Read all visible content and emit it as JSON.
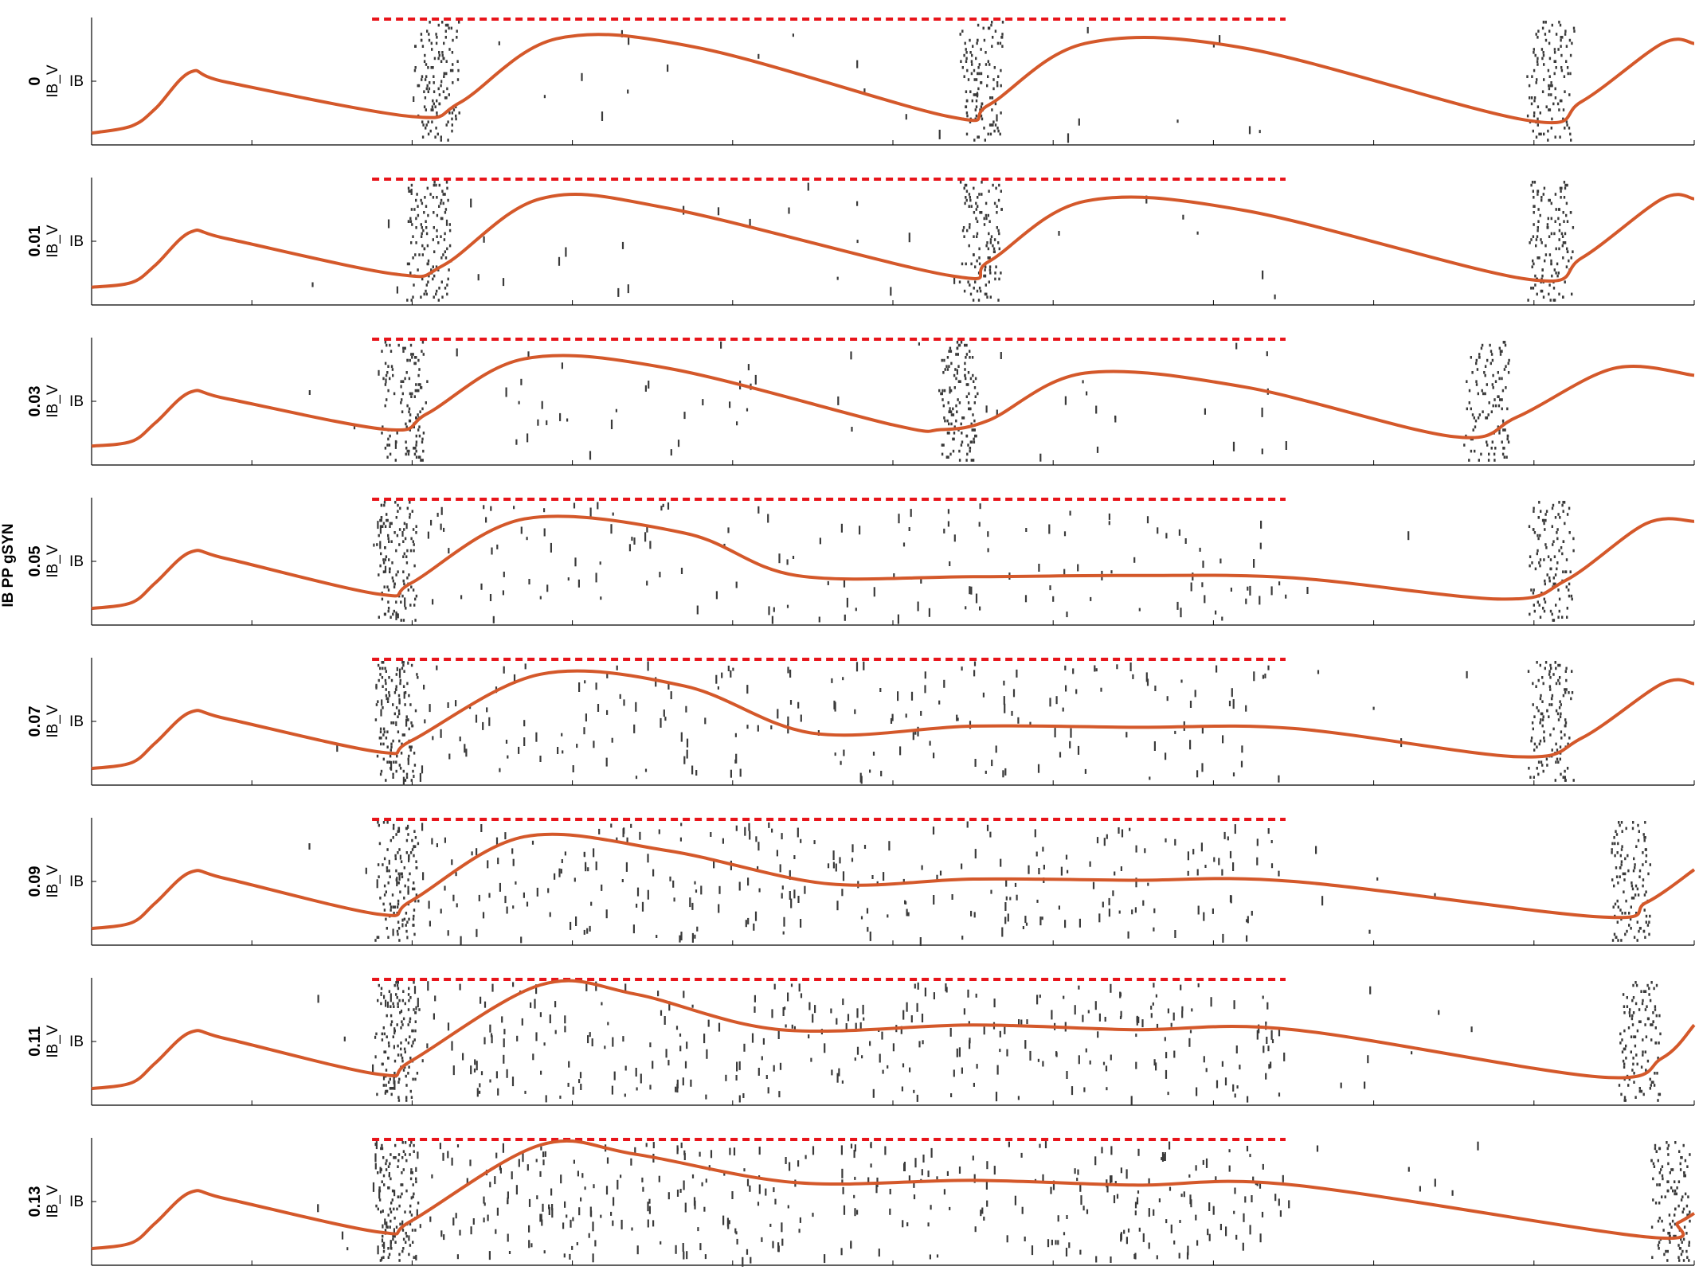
{
  "chart_data": {
    "type": "raster",
    "ylabel": "IB PP gSYN",
    "panel_ylabel": "IB_V",
    "ytick_label": "IB",
    "colors": {
      "spikes": "#3a3a3a",
      "trace": "#d4582a",
      "reference_line": "#e8141a"
    },
    "reference_line": {
      "style": "dashed",
      "x_start": 0.175,
      "x_end": 0.745
    },
    "xlim": [
      0,
      1
    ],
    "grid": false,
    "legend": "none",
    "series": [
      {
        "name": "0",
        "burst_centers": [
          0.215,
          0.555,
          0.91
        ],
        "burst_widths": [
          0.026,
          0.024,
          0.026
        ],
        "scatter_density": 0.05,
        "trace": [
          [
            0,
            0.06
          ],
          [
            0.025,
            0.12
          ],
          [
            0.04,
            0.27
          ],
          [
            0.062,
            0.58
          ],
          [
            0.085,
            0.49
          ],
          [
            0.2,
            0.2
          ],
          [
            0.23,
            0.32
          ],
          [
            0.29,
            0.86
          ],
          [
            0.38,
            0.78
          ],
          [
            0.535,
            0.2
          ],
          [
            0.56,
            0.3
          ],
          [
            0.62,
            0.82
          ],
          [
            0.72,
            0.78
          ],
          [
            0.895,
            0.17
          ],
          [
            0.93,
            0.33
          ],
          [
            0.98,
            0.82
          ],
          [
            1,
            0.82
          ]
        ]
      },
      {
        "name": "0.01",
        "burst_centers": [
          0.21,
          0.555,
          0.91
        ],
        "burst_widths": [
          0.026,
          0.024,
          0.026
        ],
        "scatter_density": 0.06,
        "trace": [
          [
            0,
            0.11
          ],
          [
            0.025,
            0.15
          ],
          [
            0.04,
            0.3
          ],
          [
            0.062,
            0.58
          ],
          [
            0.085,
            0.52
          ],
          [
            0.19,
            0.22
          ],
          [
            0.22,
            0.3
          ],
          [
            0.28,
            0.86
          ],
          [
            0.36,
            0.78
          ],
          [
            0.535,
            0.21
          ],
          [
            0.56,
            0.33
          ],
          [
            0.62,
            0.84
          ],
          [
            0.72,
            0.76
          ],
          [
            0.895,
            0.18
          ],
          [
            0.93,
            0.36
          ],
          [
            0.98,
            0.86
          ],
          [
            1,
            0.86
          ]
        ]
      },
      {
        "name": "0.03",
        "burst_centers": [
          0.195,
          0.54,
          0.87
        ],
        "burst_widths": [
          0.026,
          0.022,
          0.026
        ],
        "scatter_density": 0.12,
        "trace": [
          [
            0,
            0.12
          ],
          [
            0.025,
            0.16
          ],
          [
            0.04,
            0.32
          ],
          [
            0.062,
            0.58
          ],
          [
            0.085,
            0.52
          ],
          [
            0.185,
            0.26
          ],
          [
            0.21,
            0.4
          ],
          [
            0.27,
            0.86
          ],
          [
            0.36,
            0.78
          ],
          [
            0.5,
            0.3
          ],
          [
            0.53,
            0.26
          ],
          [
            0.56,
            0.34
          ],
          [
            0.62,
            0.74
          ],
          [
            0.72,
            0.62
          ],
          [
            0.85,
            0.2
          ],
          [
            0.89,
            0.37
          ],
          [
            0.95,
            0.78
          ],
          [
            1,
            0.72
          ]
        ]
      },
      {
        "name": "0.05",
        "burst_centers": [
          0.19,
          0.91
        ],
        "burst_widths": [
          0.024,
          0.026
        ],
        "scatter_density": 0.3,
        "trace": [
          [
            0,
            0.1
          ],
          [
            0.025,
            0.15
          ],
          [
            0.04,
            0.32
          ],
          [
            0.062,
            0.58
          ],
          [
            0.085,
            0.52
          ],
          [
            0.18,
            0.22
          ],
          [
            0.2,
            0.32
          ],
          [
            0.27,
            0.86
          ],
          [
            0.37,
            0.74
          ],
          [
            0.44,
            0.38
          ],
          [
            0.55,
            0.37
          ],
          [
            0.65,
            0.38
          ],
          [
            0.75,
            0.36
          ],
          [
            0.88,
            0.18
          ],
          [
            0.92,
            0.34
          ],
          [
            0.97,
            0.82
          ],
          [
            1,
            0.84
          ]
        ]
      },
      {
        "name": "0.07",
        "burst_centers": [
          0.19,
          0.91
        ],
        "burst_widths": [
          0.024,
          0.026
        ],
        "scatter_density": 0.42,
        "trace": [
          [
            0,
            0.1
          ],
          [
            0.025,
            0.15
          ],
          [
            0.04,
            0.32
          ],
          [
            0.062,
            0.58
          ],
          [
            0.085,
            0.52
          ],
          [
            0.18,
            0.24
          ],
          [
            0.2,
            0.34
          ],
          [
            0.28,
            0.9
          ],
          [
            0.37,
            0.8
          ],
          [
            0.45,
            0.4
          ],
          [
            0.55,
            0.46
          ],
          [
            0.65,
            0.45
          ],
          [
            0.75,
            0.44
          ],
          [
            0.89,
            0.2
          ],
          [
            0.93,
            0.36
          ],
          [
            0.98,
            0.82
          ],
          [
            1,
            0.82
          ]
        ]
      },
      {
        "name": "0.09",
        "burst_centers": [
          0.19,
          0.96
        ],
        "burst_widths": [
          0.024,
          0.024
        ],
        "scatter_density": 0.55,
        "trace": [
          [
            0,
            0.1
          ],
          [
            0.025,
            0.15
          ],
          [
            0.04,
            0.32
          ],
          [
            0.062,
            0.58
          ],
          [
            0.085,
            0.52
          ],
          [
            0.18,
            0.22
          ],
          [
            0.2,
            0.34
          ],
          [
            0.27,
            0.88
          ],
          [
            0.36,
            0.76
          ],
          [
            0.46,
            0.48
          ],
          [
            0.55,
            0.52
          ],
          [
            0.65,
            0.51
          ],
          [
            0.75,
            0.5
          ],
          [
            0.94,
            0.2
          ],
          [
            0.97,
            0.32
          ],
          [
            1,
            0.6
          ]
        ]
      },
      {
        "name": "0.11",
        "burst_centers": [
          0.19,
          0.965
        ],
        "burst_widths": [
          0.024,
          0.024
        ],
        "scatter_density": 0.65,
        "trace": [
          [
            0,
            0.1
          ],
          [
            0.025,
            0.15
          ],
          [
            0.04,
            0.32
          ],
          [
            0.062,
            0.58
          ],
          [
            0.085,
            0.52
          ],
          [
            0.18,
            0.22
          ],
          [
            0.2,
            0.34
          ],
          [
            0.28,
            0.98
          ],
          [
            0.34,
            0.9
          ],
          [
            0.43,
            0.6
          ],
          [
            0.55,
            0.64
          ],
          [
            0.65,
            0.6
          ],
          [
            0.75,
            0.6
          ],
          [
            0.94,
            0.2
          ],
          [
            0.98,
            0.36
          ],
          [
            1,
            0.64
          ]
        ]
      },
      {
        "name": "0.13",
        "burst_centers": [
          0.19,
          0.985
        ],
        "burst_widths": [
          0.024,
          0.024
        ],
        "scatter_density": 0.75,
        "trace": [
          [
            0,
            0.1
          ],
          [
            0.025,
            0.15
          ],
          [
            0.04,
            0.32
          ],
          [
            0.062,
            0.58
          ],
          [
            0.085,
            0.52
          ],
          [
            0.18,
            0.24
          ],
          [
            0.2,
            0.34
          ],
          [
            0.28,
            0.98
          ],
          [
            0.34,
            0.9
          ],
          [
            0.44,
            0.66
          ],
          [
            0.55,
            0.68
          ],
          [
            0.65,
            0.64
          ],
          [
            0.75,
            0.64
          ],
          [
            0.97,
            0.2
          ],
          [
            0.99,
            0.32
          ],
          [
            1,
            0.4
          ]
        ]
      }
    ]
  }
}
